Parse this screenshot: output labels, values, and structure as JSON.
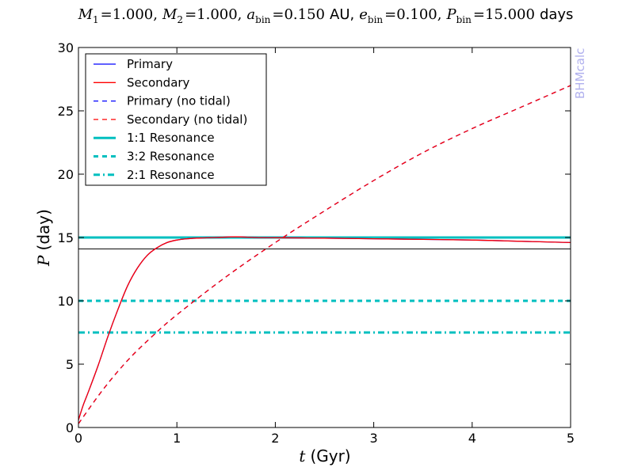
{
  "chart_data": {
    "type": "line",
    "title": {
      "m1_sym": "M",
      "m1_sub": "1",
      "m1_val": "=1.000,",
      "m2_sym": "M",
      "m2_sub": "2",
      "m2_val": "=1.000,",
      "a_sym": "a",
      "a_sub": "bin",
      "a_val": "=0.150",
      "a_unit": "AU,",
      "e_sym": "e",
      "e_sub": "bin",
      "e_val": "=0.100,",
      "p_sym": "P",
      "p_sub": "bin",
      "p_val": "=15.000",
      "p_unit": "days"
    },
    "xlabel": {
      "sym": "t",
      "unit": "(Gyr)"
    },
    "ylabel": {
      "sym": "P",
      "unit": "(day)"
    },
    "watermark": "BHMcalc",
    "xlim": [
      0,
      5
    ],
    "ylim": [
      0,
      30
    ],
    "xticks": [
      "0",
      "1",
      "2",
      "3",
      "4",
      "5"
    ],
    "yticks": [
      "0",
      "5",
      "10",
      "15",
      "20",
      "25",
      "30"
    ],
    "legend_position": "upper-left",
    "series": [
      {
        "name": "Primary",
        "style": "solid",
        "color": "#0000ff",
        "width": 1.3,
        "x": [
          0,
          0.05,
          0.1,
          0.2,
          0.3,
          0.4,
          0.5,
          0.6,
          0.7,
          0.8,
          0.9,
          1.0,
          1.1,
          1.2,
          1.4,
          1.6,
          1.8,
          2.0,
          2.5,
          3.0,
          3.5,
          4.0,
          4.5,
          5.0
        ],
        "y": [
          0.6,
          1.8,
          2.8,
          4.9,
          7.2,
          9.3,
          11.2,
          12.6,
          13.6,
          14.2,
          14.6,
          14.8,
          14.9,
          14.95,
          15.0,
          15.05,
          15.0,
          14.98,
          14.95,
          14.9,
          14.85,
          14.8,
          14.7,
          14.6
        ]
      },
      {
        "name": "Secondary",
        "style": "solid",
        "color": "#ff0000",
        "width": 1.3,
        "x": [
          0,
          0.05,
          0.1,
          0.2,
          0.3,
          0.4,
          0.5,
          0.6,
          0.7,
          0.8,
          0.9,
          1.0,
          1.1,
          1.2,
          1.4,
          1.6,
          1.8,
          2.0,
          2.5,
          3.0,
          3.5,
          4.0,
          4.5,
          5.0
        ],
        "y": [
          0.6,
          1.8,
          2.8,
          4.9,
          7.2,
          9.3,
          11.2,
          12.6,
          13.6,
          14.2,
          14.6,
          14.8,
          14.9,
          14.95,
          15.0,
          15.05,
          15.0,
          14.98,
          14.95,
          14.9,
          14.85,
          14.8,
          14.7,
          14.6
        ]
      },
      {
        "name": "Primary (no tidal)",
        "style": "dashed",
        "color": "#0000ff",
        "width": 1.3,
        "x": [
          0,
          0.25,
          0.5,
          0.75,
          1.0,
          1.5,
          2.0,
          2.5,
          3.0,
          3.5,
          4.0,
          4.5,
          5.0
        ],
        "y": [
          0.3,
          3.0,
          5.3,
          7.2,
          8.9,
          11.9,
          14.6,
          17.1,
          19.5,
          21.7,
          23.6,
          25.3,
          27.0
        ]
      },
      {
        "name": "Secondary (no tidal)",
        "style": "dashed",
        "color": "#ff0000",
        "width": 1.3,
        "x": [
          0,
          0.25,
          0.5,
          0.75,
          1.0,
          1.5,
          2.0,
          2.5,
          3.0,
          3.5,
          4.0,
          4.5,
          5.0
        ],
        "y": [
          0.3,
          3.0,
          5.3,
          7.2,
          8.9,
          11.9,
          14.6,
          17.1,
          19.5,
          21.7,
          23.6,
          25.3,
          27.0
        ]
      },
      {
        "name": "1:1 Resonance",
        "style": "solid",
        "color": "#00bfbf",
        "width": 3,
        "x": [
          0,
          5
        ],
        "y": [
          15,
          15
        ]
      },
      {
        "name": "3:2 Resonance",
        "style": "dashed",
        "color": "#00bfbf",
        "width": 3,
        "x": [
          0,
          5
        ],
        "y": [
          10,
          10
        ]
      },
      {
        "name": "2:1 Resonance",
        "style": "dashdot",
        "color": "#00bfbf",
        "width": 3,
        "x": [
          0,
          5
        ],
        "y": [
          7.5,
          7.5
        ]
      }
    ],
    "reference_lines": [
      {
        "y": 14.1,
        "color": "#000000",
        "width": 1
      }
    ]
  }
}
